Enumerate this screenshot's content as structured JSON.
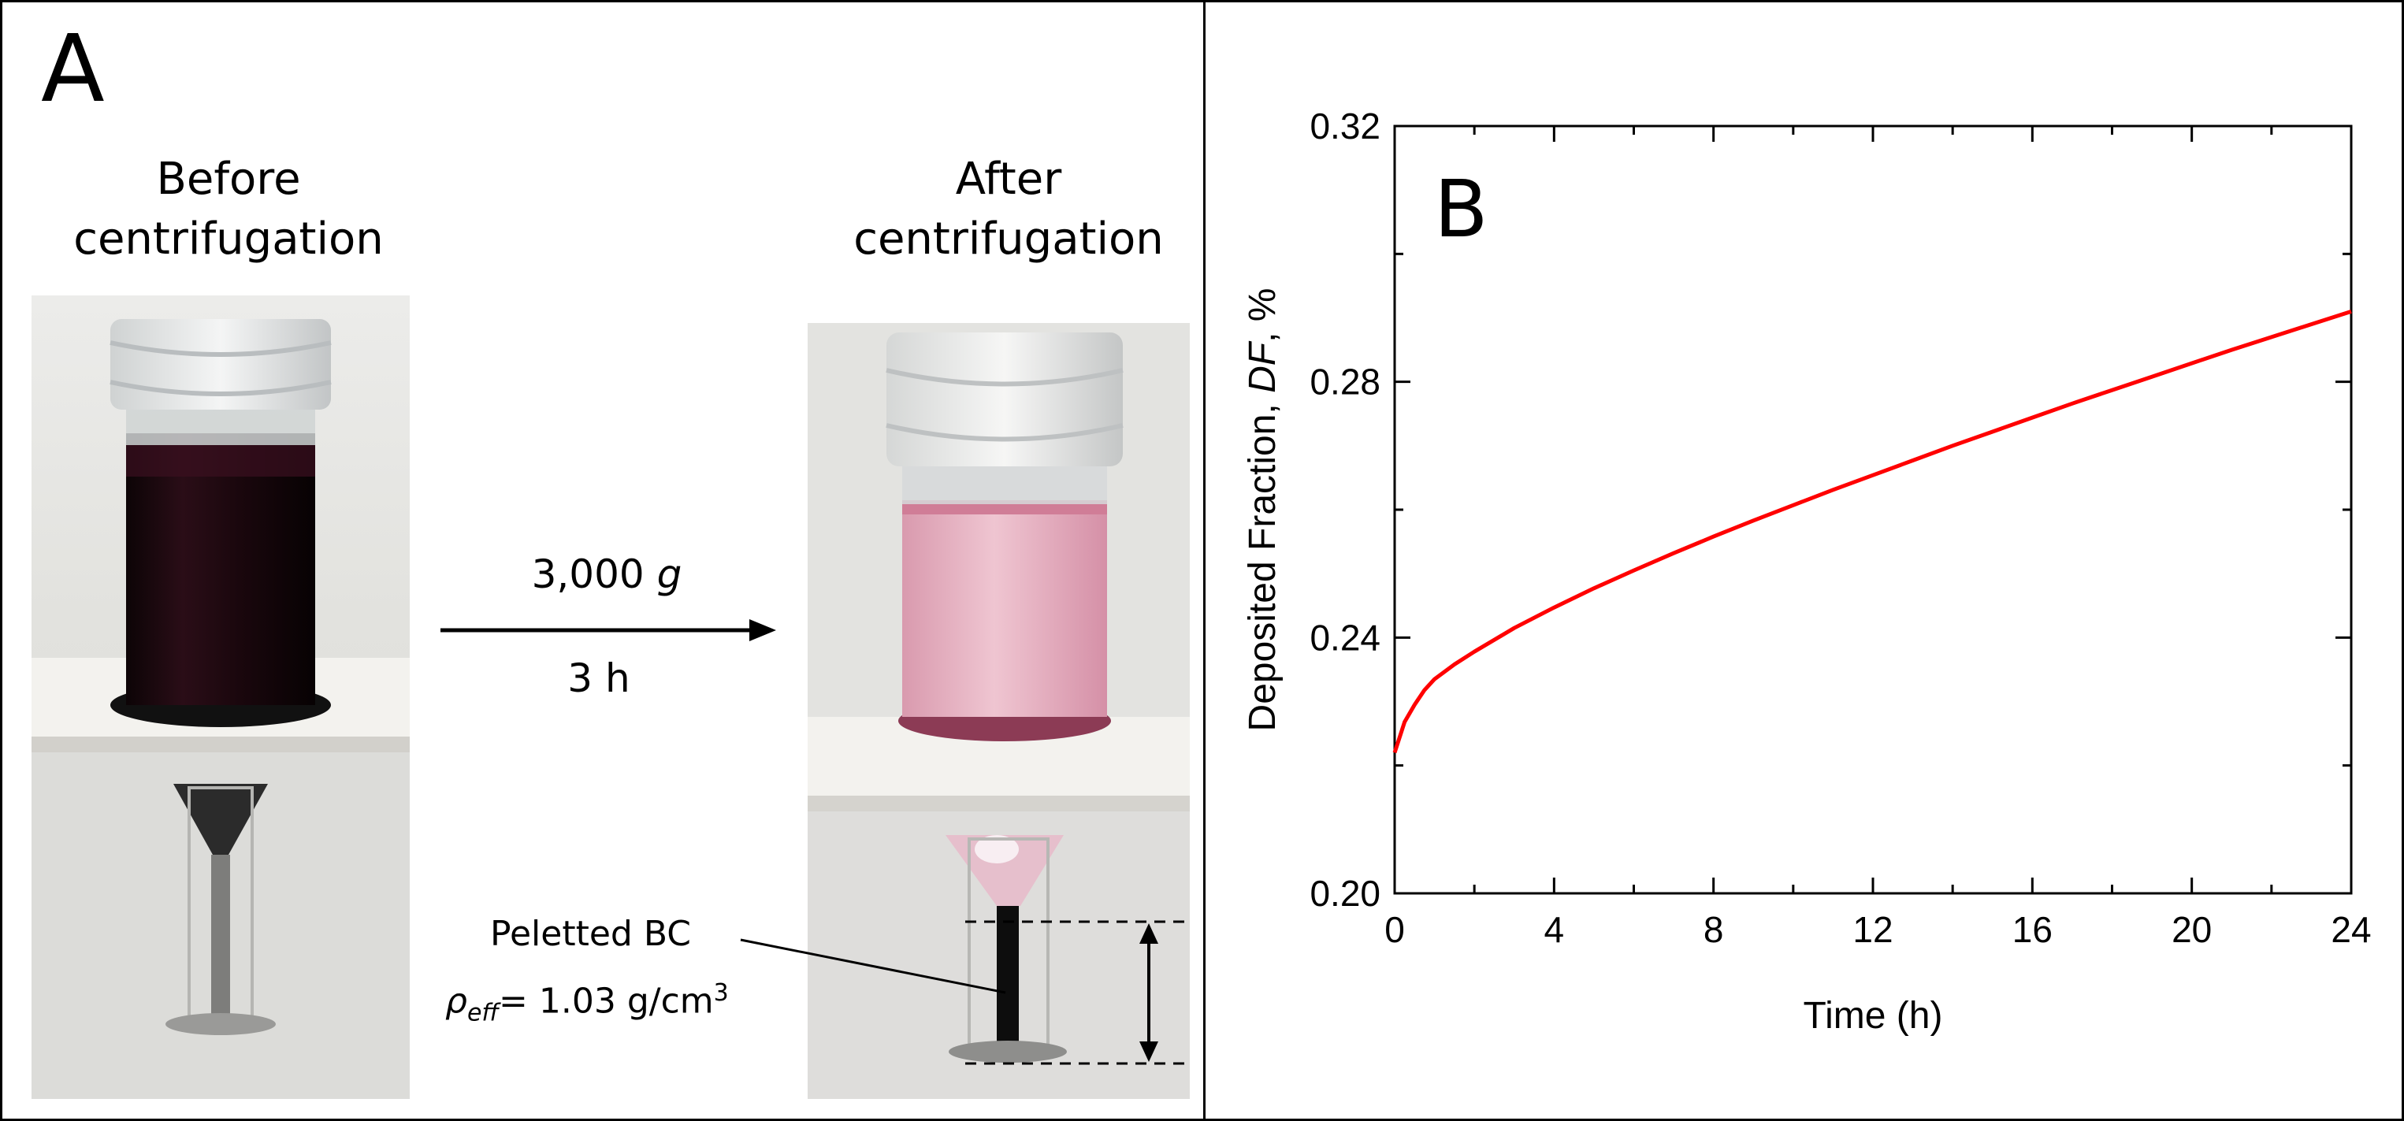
{
  "panel_a": {
    "letter": "A",
    "before_label_line1": "Before",
    "before_label_line2": "centrifugation",
    "after_label_line1": "After",
    "after_label_line2": "centrifugation",
    "arrow_top_label": "3,000",
    "arrow_top_unit": "g",
    "arrow_bottom_label": "3 h",
    "pellet_label": "Peletted BC",
    "density_symbol": "ρ",
    "density_subscript": "eff",
    "density_value": "= 1.03 g/cm",
    "density_superscript": "3",
    "colors": {
      "dark_liquid": "#1a0a10",
      "pink_liquid": "#e7b8c6",
      "rack": "#f3f1ec",
      "background": "#dcdcd8"
    }
  },
  "panel_b": {
    "letter": "B",
    "chart_data": {
      "type": "line",
      "title": "",
      "xlabel": "Time (h)",
      "ylabel_prefix": "Deposited Fraction, ",
      "ylabel_italic": "DF",
      "ylabel_suffix": ", %",
      "xlim": [
        0,
        24
      ],
      "ylim": [
        0.2,
        0.32
      ],
      "xticks": [
        0,
        4,
        8,
        12,
        16,
        20,
        24
      ],
      "yticks": [
        0.2,
        0.24,
        0.28,
        0.32
      ],
      "xtick_labels": [
        "0",
        "4",
        "8",
        "12",
        "16",
        "20",
        "24"
      ],
      "ytick_labels": [
        "0.20",
        "0.24",
        "0.28",
        "0.32"
      ],
      "grid": false,
      "series": [
        {
          "name": "DF",
          "color": "#ff0000",
          "x": [
            0,
            0.25,
            0.5,
            0.75,
            1,
            1.5,
            2,
            3,
            4,
            5,
            6,
            7,
            8,
            9,
            10,
            11,
            12,
            13,
            14,
            15,
            16,
            17,
            18,
            19,
            20,
            21,
            22,
            23,
            24
          ],
          "y": [
            0.222,
            0.2268,
            0.2295,
            0.2318,
            0.2335,
            0.2358,
            0.2378,
            0.2415,
            0.2447,
            0.2477,
            0.2505,
            0.2532,
            0.2558,
            0.2583,
            0.2607,
            0.2631,
            0.2654,
            0.2677,
            0.27,
            0.2722,
            0.2744,
            0.2766,
            0.2787,
            0.2808,
            0.2829,
            0.285,
            0.287,
            0.289,
            0.291
          ]
        }
      ]
    }
  }
}
